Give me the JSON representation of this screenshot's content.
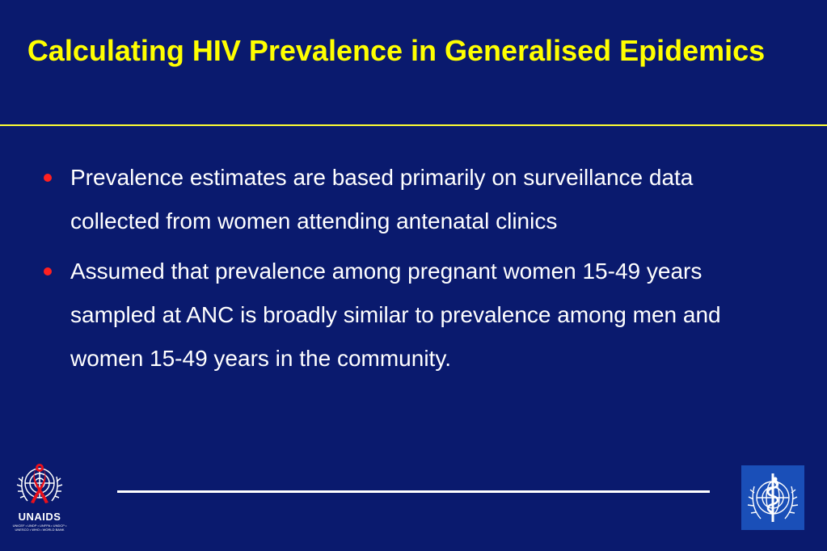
{
  "slide": {
    "title": "Calculating HIV Prevalence in Generalised Epidemics",
    "bullets": [
      "Prevalence estimates are based primarily on surveillance data collected from women attending antenatal clinics",
      "Assumed that prevalence among pregnant women 15-49 years sampled at ANC is broadly similar to prevalence among men and women 15-49 years in the community."
    ]
  },
  "logos": {
    "unaids_name": "UNAIDS",
    "unaids_partners": "UNICEF • UNDP • UNFPA • UNDCP • UNESCO • WHO • WORLD BANK"
  },
  "colors": {
    "background": "#0a1a6e",
    "title": "#ffff00",
    "bullet_text": "#ffffff",
    "bullet_marker": "#ff2020",
    "who_logo_bg": "#1a4fb8"
  }
}
